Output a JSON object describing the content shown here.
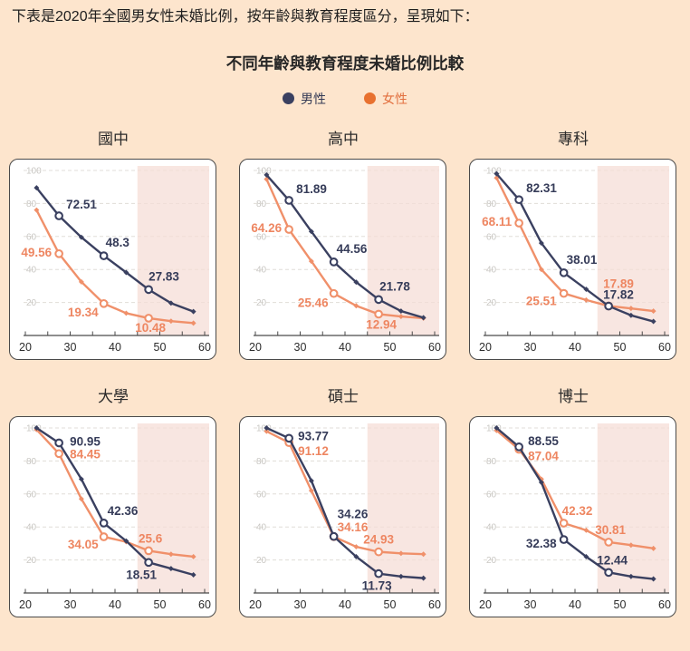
{
  "page": {
    "intro_text": "下表是2020年全國男女性未婚比例，按年齡與教育程度區分，呈現如下：",
    "title": "不同年齡與教育程度未婚比例比較",
    "background_color": "#fde5cd"
  },
  "legend": {
    "items": [
      {
        "label": "男性",
        "color": "#3a4060",
        "text_color": "#343a55"
      },
      {
        "label": "女性",
        "color": "#e8712f",
        "text_color": "#e2703f"
      }
    ]
  },
  "chart_data": [
    {
      "type": "line",
      "title": "國中",
      "x": [
        22.5,
        27.5,
        32.5,
        37.5,
        42.5,
        47.5,
        52.5,
        57.5
      ],
      "x_ticks": [
        20,
        30,
        40,
        50,
        60
      ],
      "x_minor_step": 5,
      "y_ticks": [
        20,
        40,
        60,
        80,
        100
      ],
      "x_range": [
        20,
        60
      ],
      "y_range": [
        0,
        105
      ],
      "shaded_x_range": [
        45,
        60
      ],
      "shaded_color": "#f5ddd6",
      "series": [
        {
          "name": "男性",
          "color": "#3a4060",
          "label_color": "#363c59",
          "values": [
            89.5,
            72.51,
            59.5,
            48.3,
            38.2,
            27.83,
            19.6,
            14.5
          ]
        },
        {
          "name": "女性",
          "color": "#f0906a",
          "label_color": "#ee8661",
          "values": [
            76.0,
            49.56,
            32.5,
            19.34,
            13.5,
            10.48,
            8.7,
            7.5
          ]
        }
      ],
      "point_labels": [
        {
          "series": 0,
          "x": 27.5,
          "text": "72.51"
        },
        {
          "series": 0,
          "x": 37.5,
          "text": "48.3"
        },
        {
          "series": 0,
          "x": 47.5,
          "text": "27.83"
        },
        {
          "series": 1,
          "x": 27.5,
          "text": "49.56"
        },
        {
          "series": 1,
          "x": 37.5,
          "text": "19.34"
        },
        {
          "series": 1,
          "x": 47.5,
          "text": "10.48"
        }
      ]
    },
    {
      "type": "line",
      "title": "高中",
      "x": [
        22.5,
        27.5,
        32.5,
        37.5,
        42.5,
        47.5,
        52.5,
        57.5
      ],
      "x_ticks": [
        20,
        30,
        40,
        50,
        60
      ],
      "x_minor_step": 5,
      "y_ticks": [
        20,
        40,
        60,
        80,
        100
      ],
      "x_range": [
        20,
        60
      ],
      "y_range": [
        0,
        105
      ],
      "shaded_x_range": [
        45,
        60
      ],
      "shaded_color": "#f5ddd6",
      "series": [
        {
          "name": "男性",
          "color": "#3a4060",
          "label_color": "#363c59",
          "values": [
            97.3,
            81.89,
            63.0,
            44.56,
            32.3,
            21.78,
            14.8,
            10.8
          ]
        },
        {
          "name": "女性",
          "color": "#f0906a",
          "label_color": "#ee8661",
          "values": [
            94.7,
            64.26,
            45.0,
            25.46,
            18.0,
            12.94,
            11.5,
            10.5
          ]
        }
      ],
      "point_labels": [
        {
          "series": 0,
          "x": 27.5,
          "text": "81.89"
        },
        {
          "series": 0,
          "x": 37.5,
          "text": "44.56"
        },
        {
          "series": 0,
          "x": 47.5,
          "text": "21.78"
        },
        {
          "series": 1,
          "x": 27.5,
          "text": "64.26"
        },
        {
          "series": 1,
          "x": 37.5,
          "text": "25.46"
        },
        {
          "series": 1,
          "x": 47.5,
          "text": "12.94"
        }
      ]
    },
    {
      "type": "line",
      "title": "專科",
      "x": [
        22.5,
        27.5,
        32.5,
        37.5,
        42.5,
        47.5,
        52.5,
        57.5
      ],
      "x_ticks": [
        20,
        30,
        40,
        50,
        60
      ],
      "x_minor_step": 5,
      "y_ticks": [
        20,
        40,
        60,
        80,
        100
      ],
      "x_range": [
        20,
        60
      ],
      "y_range": [
        0,
        105
      ],
      "shaded_x_range": [
        45,
        60
      ],
      "shaded_color": "#f5ddd6",
      "series": [
        {
          "name": "男性",
          "color": "#3a4060",
          "label_color": "#363c59",
          "values": [
            98.0,
            82.31,
            56.0,
            38.01,
            28.0,
            17.82,
            12.2,
            8.5
          ]
        },
        {
          "name": "女性",
          "color": "#f0906a",
          "label_color": "#ee8661",
          "values": [
            95.5,
            68.11,
            40.0,
            25.51,
            21.5,
            17.89,
            16.4,
            14.8
          ]
        }
      ],
      "point_labels": [
        {
          "series": 0,
          "x": 27.5,
          "text": "82.31"
        },
        {
          "series": 0,
          "x": 37.5,
          "text": "38.01"
        },
        {
          "series": 0,
          "x": 47.5,
          "text": "17.82"
        },
        {
          "series": 1,
          "x": 27.5,
          "text": "68.11"
        },
        {
          "series": 1,
          "x": 37.5,
          "text": "25.51"
        },
        {
          "series": 1,
          "x": 47.5,
          "text": "17.89"
        }
      ]
    },
    {
      "type": "line",
      "title": "大學",
      "x": [
        22.5,
        27.5,
        32.5,
        37.5,
        42.5,
        47.5,
        52.5,
        57.5
      ],
      "x_ticks": [
        20,
        30,
        40,
        50,
        60
      ],
      "x_minor_step": 5,
      "y_ticks": [
        20,
        40,
        60,
        80,
        100
      ],
      "x_range": [
        20,
        60
      ],
      "y_range": [
        0,
        105
      ],
      "shaded_x_range": [
        45,
        60
      ],
      "shaded_color": "#f5ddd6",
      "series": [
        {
          "name": "男性",
          "color": "#3a4060",
          "label_color": "#363c59",
          "values": [
            100.0,
            90.95,
            69.0,
            42.36,
            31.5,
            18.51,
            14.8,
            11.0
          ]
        },
        {
          "name": "女性",
          "color": "#f0906a",
          "label_color": "#ee8661",
          "values": [
            99.0,
            84.45,
            57.0,
            34.05,
            31.0,
            25.6,
            23.5,
            22.0
          ]
        }
      ],
      "point_labels": [
        {
          "series": 0,
          "x": 27.5,
          "text": "90.95"
        },
        {
          "series": 0,
          "x": 37.5,
          "text": "42.36"
        },
        {
          "series": 0,
          "x": 47.5,
          "text": "18.51"
        },
        {
          "series": 1,
          "x": 27.5,
          "text": "84.45"
        },
        {
          "series": 1,
          "x": 37.5,
          "text": "34.05"
        },
        {
          "series": 1,
          "x": 47.5,
          "text": "25.6"
        }
      ]
    },
    {
      "type": "line",
      "title": "碩士",
      "x": [
        22.5,
        27.5,
        32.5,
        37.5,
        42.5,
        47.5,
        52.5,
        57.5
      ],
      "x_ticks": [
        20,
        30,
        40,
        50,
        60
      ],
      "x_minor_step": 5,
      "y_ticks": [
        20,
        40,
        60,
        80,
        100
      ],
      "x_range": [
        20,
        60
      ],
      "y_range": [
        0,
        105
      ],
      "shaded_x_range": [
        45,
        60
      ],
      "shaded_color": "#f5ddd6",
      "series": [
        {
          "name": "男性",
          "color": "#3a4060",
          "label_color": "#363c59",
          "values": [
            100.0,
            93.77,
            68.0,
            34.26,
            22.0,
            11.73,
            10.0,
            9.0
          ]
        },
        {
          "name": "女性",
          "color": "#f0906a",
          "label_color": "#ee8661",
          "values": [
            98.0,
            91.12,
            62.0,
            34.16,
            28.0,
            24.93,
            24.0,
            23.5
          ]
        }
      ],
      "point_labels": [
        {
          "series": 0,
          "x": 27.5,
          "text": "93.77"
        },
        {
          "series": 0,
          "x": 37.5,
          "text": "34.26"
        },
        {
          "series": 0,
          "x": 47.5,
          "text": "11.73"
        },
        {
          "series": 1,
          "x": 27.5,
          "text": "91.12"
        },
        {
          "series": 1,
          "x": 37.5,
          "text": "34.16"
        },
        {
          "series": 1,
          "x": 47.5,
          "text": "24.93"
        }
      ]
    },
    {
      "type": "line",
      "title": "博士",
      "x": [
        22.5,
        27.5,
        32.5,
        37.5,
        42.5,
        47.5,
        52.5,
        57.5
      ],
      "x_ticks": [
        20,
        30,
        40,
        50,
        60
      ],
      "x_minor_step": 5,
      "y_ticks": [
        20,
        40,
        60,
        80,
        100
      ],
      "x_range": [
        20,
        60
      ],
      "y_range": [
        0,
        105
      ],
      "shaded_x_range": [
        45,
        60
      ],
      "shaded_color": "#f5ddd6",
      "series": [
        {
          "name": "男性",
          "color": "#3a4060",
          "label_color": "#363c59",
          "values": [
            100.0,
            88.55,
            67.0,
            32.38,
            22.0,
            12.44,
            10.0,
            8.5
          ]
        },
        {
          "name": "女性",
          "color": "#f0906a",
          "label_color": "#ee8661",
          "values": [
            98.5,
            87.04,
            69.0,
            42.32,
            38.0,
            30.81,
            29.0,
            27.0
          ]
        }
      ],
      "point_labels": [
        {
          "series": 0,
          "x": 27.5,
          "text": "88.55"
        },
        {
          "series": 0,
          "x": 37.5,
          "text": "32.38"
        },
        {
          "series": 0,
          "x": 47.5,
          "text": "12.44"
        },
        {
          "series": 1,
          "x": 27.5,
          "text": "87.04"
        },
        {
          "series": 1,
          "x": 37.5,
          "text": "42.32"
        },
        {
          "series": 1,
          "x": 47.5,
          "text": "30.81"
        }
      ]
    }
  ]
}
